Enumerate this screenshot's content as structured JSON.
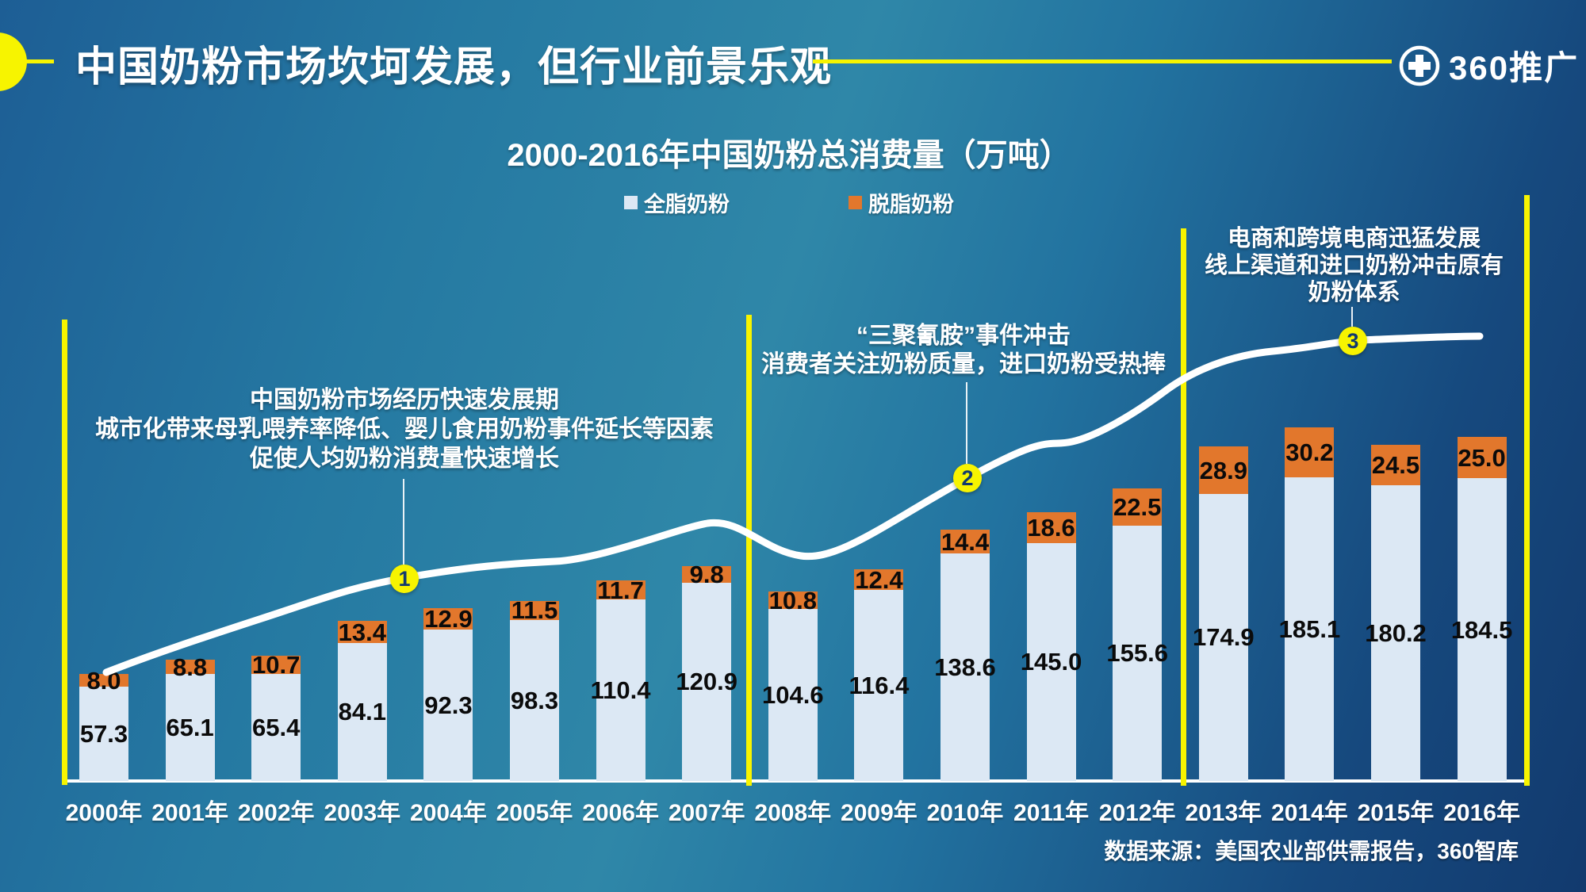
{
  "header": {
    "title": "中国奶粉市场坎坷发展，但行业前景乐观",
    "logo": {
      "text": "360推广",
      "icon": "plus-circle-icon"
    }
  },
  "chart": {
    "title": "2000-2016年中国奶粉总消费量（万吨）",
    "source": "数据来源：美国农业部供需报告，360智库"
  },
  "chart_data": {
    "type": "bar",
    "stacked": true,
    "unit": "万吨",
    "title": "2000-2016年中国奶粉总消费量（万吨）",
    "categories": [
      "2000年",
      "2001年",
      "2002年",
      "2003年",
      "2004年",
      "2005年",
      "2006年",
      "2007年",
      "2008年",
      "2009年",
      "2010年",
      "2011年",
      "2012年",
      "2013年",
      "2014年",
      "2015年",
      "2016年"
    ],
    "series": [
      {
        "name": "全脂奶粉",
        "color": "#dce8f4",
        "values": [
          57.3,
          65.1,
          65.4,
          84.1,
          92.3,
          98.3,
          110.4,
          120.9,
          104.6,
          116.4,
          138.6,
          145.0,
          155.6,
          174.9,
          185.1,
          180.2,
          184.5
        ]
      },
      {
        "name": "脱脂奶粉",
        "color": "#e2772c",
        "values": [
          8.0,
          8.8,
          10.7,
          13.4,
          12.9,
          11.5,
          11.7,
          9.8,
          10.8,
          12.4,
          14.4,
          18.6,
          22.5,
          28.9,
          30.2,
          24.5,
          25.0
        ]
      }
    ],
    "legend_position": "top",
    "grid": false,
    "ylim": [
      0,
      230
    ],
    "trend_line": "white smoothed curve rising from lower-left through markers 1-3, with a dip around 2008",
    "period_dividers": [
      "left of 2000年",
      "between 2007年 and 2008年",
      "between 2012年 and 2013年",
      "right of 2016年"
    ]
  },
  "annotations": [
    {
      "marker": "1",
      "lines": [
        "中国奶粉市场经历快速发展期",
        "城市化带来母乳喂养率降低、婴儿食用奶粉事件延长等因素",
        "促使人均奶粉消费量快速增长"
      ]
    },
    {
      "marker": "2",
      "lines": [
        "“三聚氰胺”事件冲击",
        "消费者关注奶粉质量，进口奶粉受热捧"
      ]
    },
    {
      "marker": "3",
      "lines": [
        "电商和跨境电商迅猛发展",
        "线上渠道和进口奶粉冲击原有",
        "奶粉体系"
      ]
    }
  ],
  "colors": {
    "accent_yellow": "#f7f400",
    "skim_orange": "#e2772c",
    "whole_light": "#dce8f4",
    "marker_text": "#123a6e"
  }
}
